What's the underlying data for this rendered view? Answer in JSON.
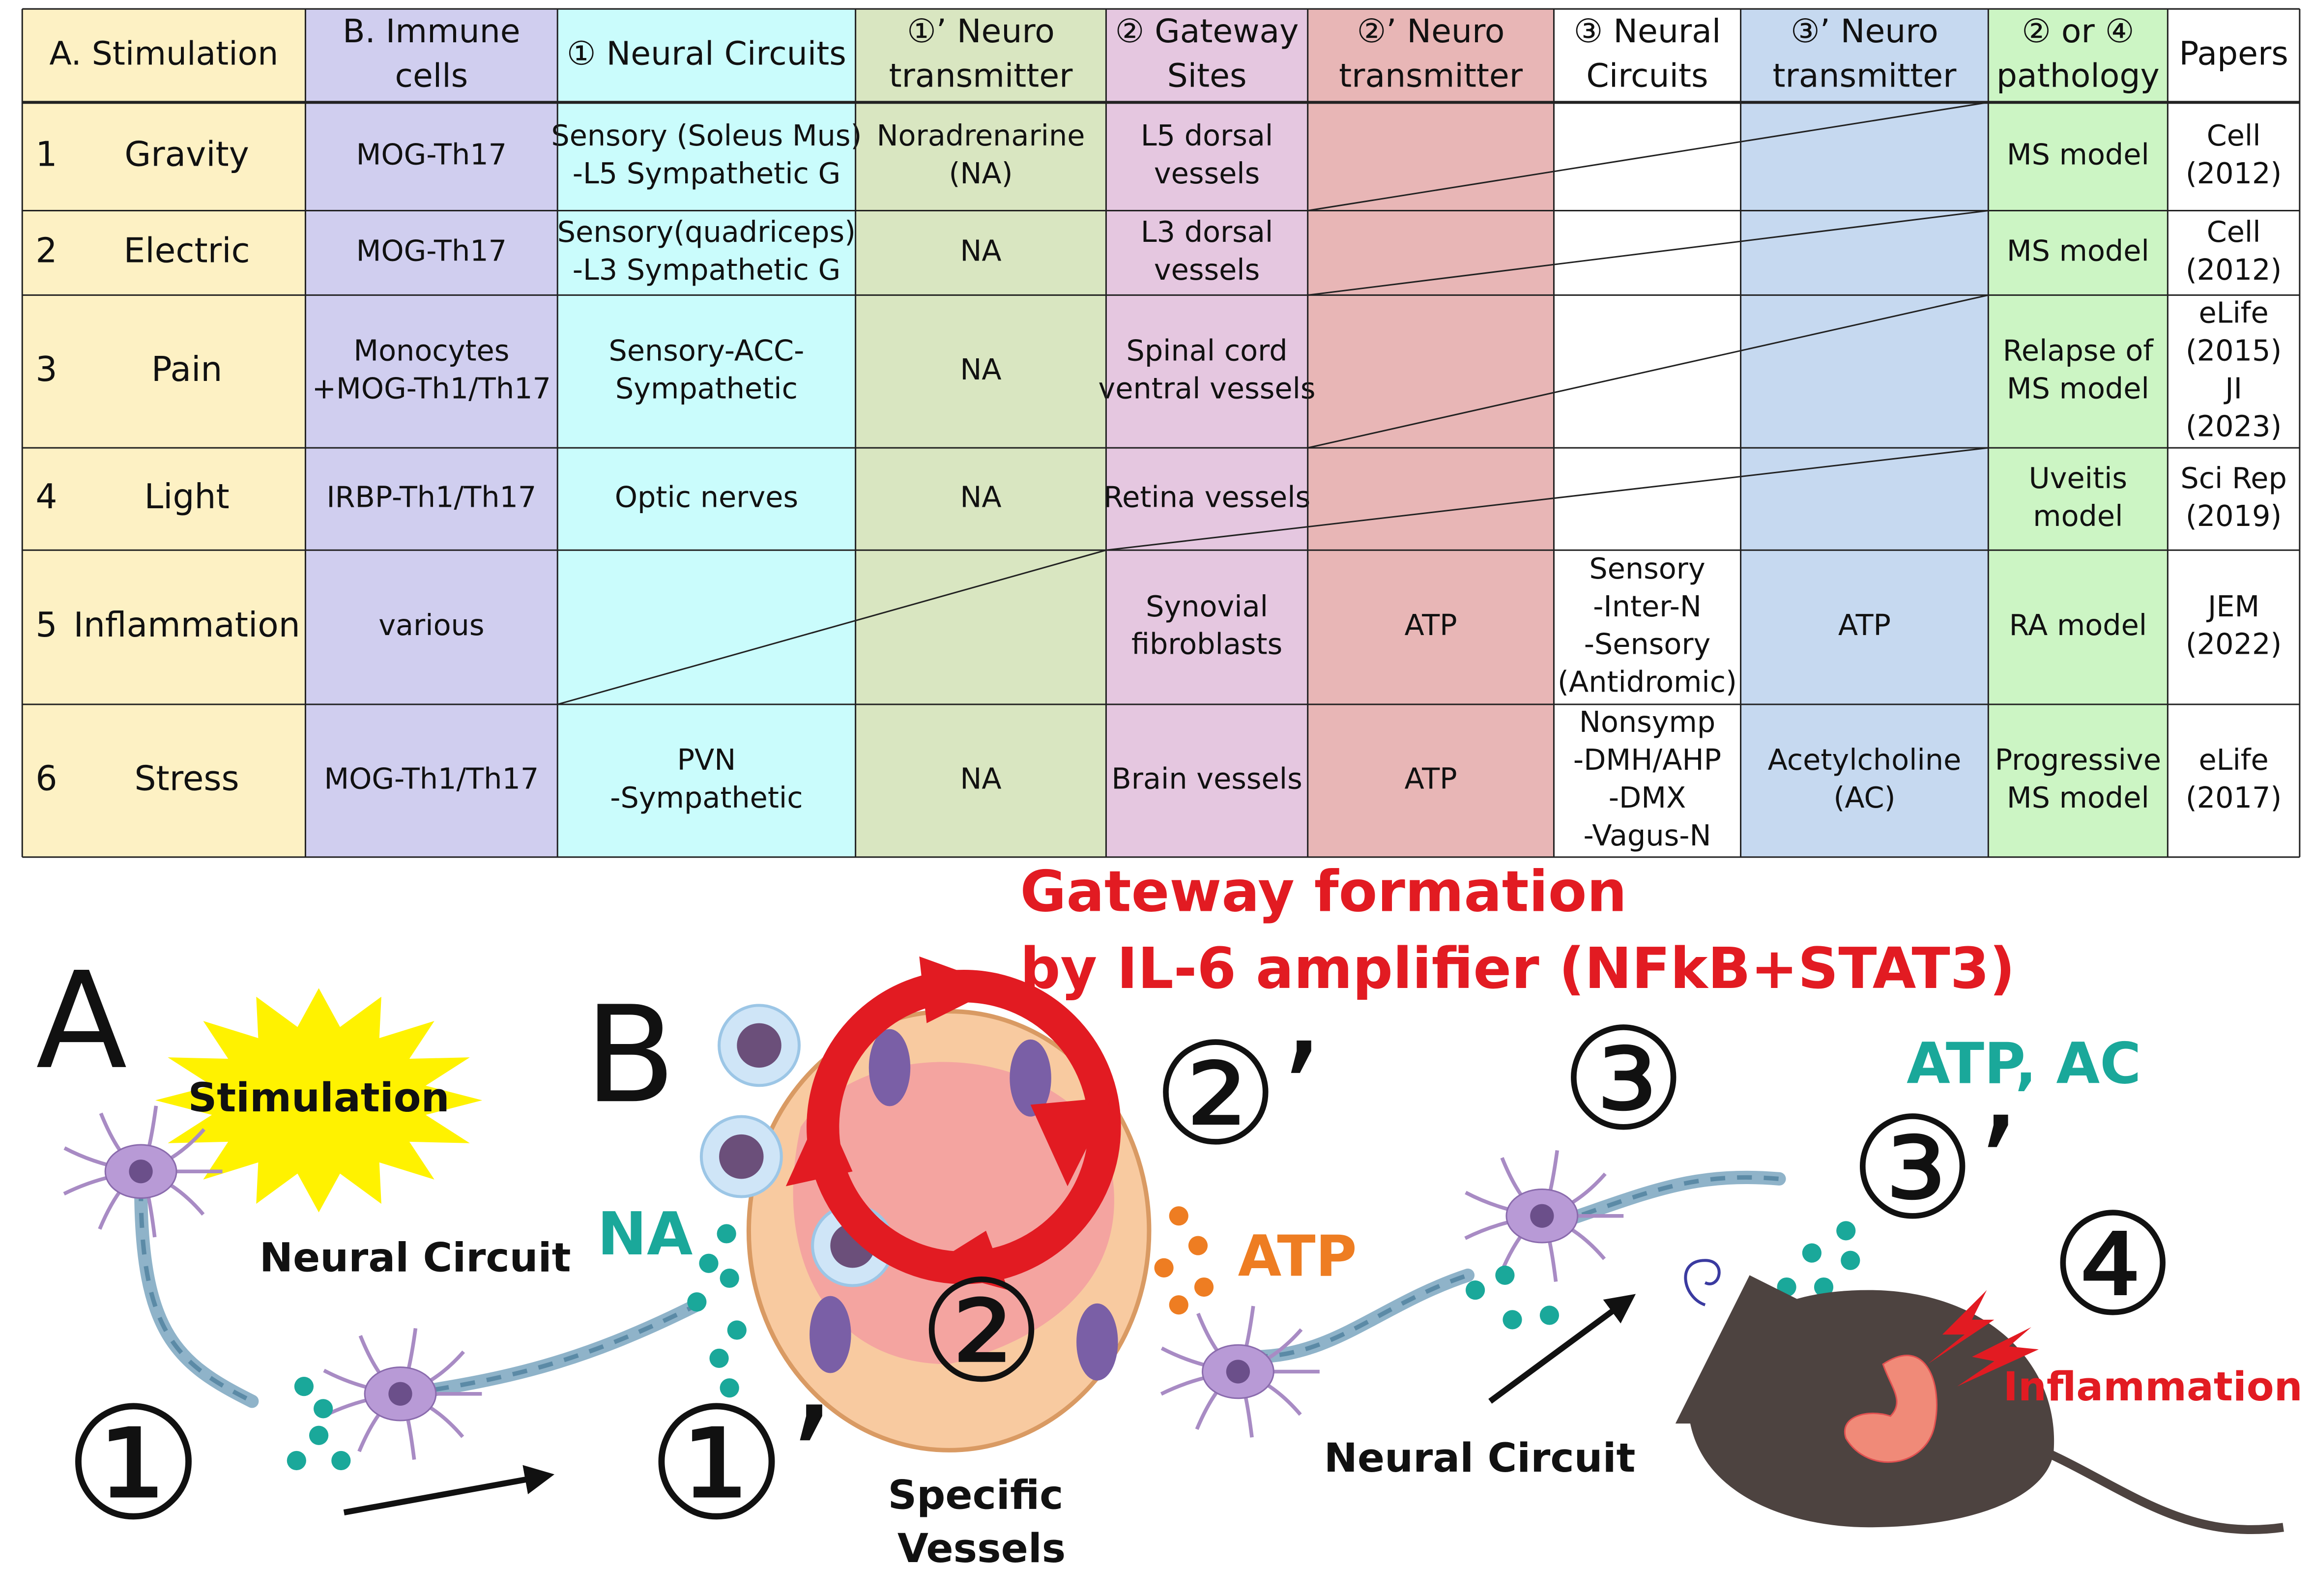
{
  "table": {
    "header": [
      [
        "A.  Stimulation"
      ],
      [
        "B. Immune",
        "cells"
      ],
      [
        "① Neural Circuits"
      ],
      [
        "①’ Neuro",
        "transmitter"
      ],
      [
        "② Gateway",
        "Sites"
      ],
      [
        "②’ Neuro",
        "transmitter"
      ],
      [
        "③ Neural",
        "Circuits"
      ],
      [
        "③’ Neuro",
        "transmitter"
      ],
      [
        "② or ④",
        "pathology"
      ],
      [
        "Papers"
      ]
    ],
    "rows": [
      {
        "num": "1",
        "stim": "Gravity",
        "cells": [
          [
            "MOG-Th17"
          ],
          [
            "Sensory (Soleus Mus)",
            "-L5 Sympathetic G"
          ],
          [
            "Noradrenarine",
            "(NA)"
          ],
          [
            "L5 dorsal",
            "vessels"
          ],
          [],
          [],
          [],
          [
            "MS model"
          ],
          [
            "Cell",
            "(2012)"
          ]
        ]
      },
      {
        "num": "2",
        "stim": "Electric",
        "cells": [
          [
            "MOG-Th17"
          ],
          [
            "Sensory(quadriceps)",
            "-L3 Sympathetic G"
          ],
          [
            "NA"
          ],
          [
            "L3 dorsal",
            "vessels"
          ],
          [],
          [],
          [],
          [
            "MS model"
          ],
          [
            "Cell",
            "(2012)"
          ]
        ]
      },
      {
        "num": "3",
        "stim": "Pain",
        "cells": [
          [
            "Monocytes",
            "+MOG-Th1/Th17"
          ],
          [
            "Sensory-ACC-",
            "Sympathetic"
          ],
          [
            "NA"
          ],
          [
            "Spinal cord",
            "ventral vessels"
          ],
          [],
          [],
          [],
          [
            "Relapse of",
            "MS model"
          ],
          [
            "eLife",
            "(2015)",
            "JI",
            "(2023)"
          ]
        ]
      },
      {
        "num": "4",
        "stim": "Light",
        "cells": [
          [
            "IRBP-Th1/Th17"
          ],
          [
            "Optic nerves"
          ],
          [
            "NA"
          ],
          [
            "Retina vessels"
          ],
          [],
          [],
          [],
          [
            "Uveitis",
            "model"
          ],
          [
            "Sci Rep",
            "(2019)"
          ]
        ]
      },
      {
        "num": "5",
        "stim": "Inflammation",
        "cells": [
          [
            "various"
          ],
          [],
          [],
          [
            "Synovial",
            "fibroblasts"
          ],
          [
            "ATP"
          ],
          [
            "Sensory",
            "-Inter-N",
            "-Sensory",
            "(Antidromic)"
          ],
          [
            "ATP"
          ],
          [
            "RA model"
          ],
          [
            "JEM",
            "(2022)"
          ]
        ]
      },
      {
        "num": "6",
        "stim": "Stress",
        "cells": [
          [
            "MOG-Th1/Th17"
          ],
          [
            "PVN",
            "-Sympathetic"
          ],
          [
            "NA"
          ],
          [
            "Brain vessels"
          ],
          [
            "ATP"
          ],
          [
            "Nonsymp",
            "-DMH/AHP",
            "-DMX",
            "-Vagus-N"
          ],
          [
            "Acetylcholine",
            "(AC)"
          ],
          [
            "Progressive",
            "MS model"
          ],
          [
            "eLife",
            "(2017)"
          ]
        ]
      }
    ]
  },
  "diagram": {
    "labels": [
      "Gateway formation",
      "by IL-6 amplifier (NFkB+STAT3)",
      "A",
      "Stimulation",
      "B",
      "Neural Circuit",
      "NA",
      "ATP",
      "ATP, AC",
      "Neural Circuit",
      "Specific",
      "Vessels",
      "Inflammation",
      "①",
      "①’",
      "②",
      "②’",
      "③",
      "③’",
      "④"
    ]
  }
}
